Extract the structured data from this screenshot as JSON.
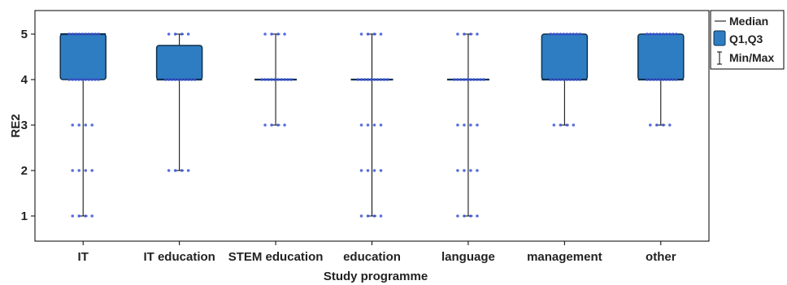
{
  "chart_data": {
    "type": "boxplot",
    "title": "",
    "xlabel": "Study programme",
    "ylabel": "RE2",
    "ylim": [
      0.5,
      5.5
    ],
    "yticks": [
      1,
      2,
      3,
      4,
      5
    ],
    "grid": false,
    "legend_placement": "top-right outside",
    "legend": {
      "median": "Median",
      "box": "Q1,Q3",
      "whisker": "Min/Max"
    },
    "colors": {
      "box_fill": "#2e7dc2",
      "box_edge": "#10314f",
      "points": "#3a55d8",
      "axis": "#000000"
    },
    "categories": [
      "IT",
      "IT education",
      "STEM education",
      "education",
      "language",
      "management",
      "other"
    ],
    "series": [
      {
        "category": "IT",
        "min": 1,
        "q1": 4,
        "median": 5,
        "q3": 5,
        "max": 5,
        "point_values": [
          5,
          4,
          3,
          2,
          1
        ]
      },
      {
        "category": "IT education",
        "min": 2,
        "q1": 4,
        "median": 4,
        "q3": 4.75,
        "max": 5,
        "point_values": [
          5,
          4,
          2
        ]
      },
      {
        "category": "STEM education",
        "min": 3,
        "q1": 4,
        "median": 4,
        "q3": 4,
        "max": 5,
        "point_values": [
          5,
          4,
          3
        ]
      },
      {
        "category": "education",
        "min": 1,
        "q1": 4,
        "median": 4,
        "q3": 4,
        "max": 5,
        "point_values": [
          5,
          4,
          3,
          2,
          1
        ]
      },
      {
        "category": "language",
        "min": 1,
        "q1": 4,
        "median": 4,
        "q3": 4,
        "max": 5,
        "point_values": [
          5,
          4,
          3,
          2,
          1
        ]
      },
      {
        "category": "management",
        "min": 3,
        "q1": 4,
        "median": 4,
        "q3": 5,
        "max": 5,
        "point_values": [
          5,
          4,
          3
        ]
      },
      {
        "category": "other",
        "min": 3,
        "q1": 4,
        "median": 4,
        "q3": 5,
        "max": 5,
        "point_values": [
          5,
          4,
          3
        ]
      }
    ]
  }
}
